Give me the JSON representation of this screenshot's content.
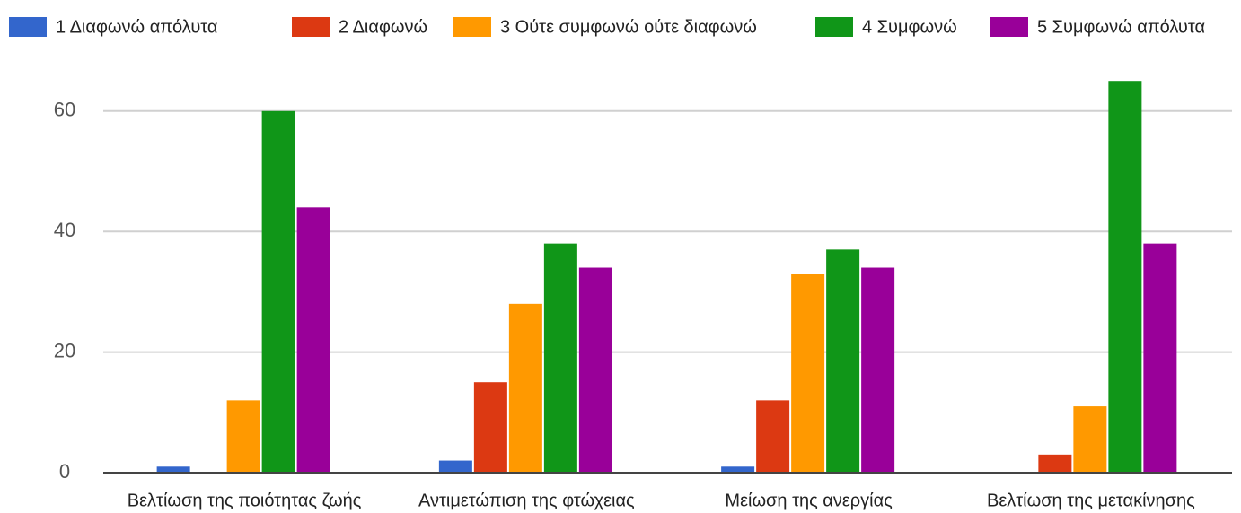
{
  "chart_data": {
    "type": "bar",
    "categories": [
      "Βελτίωση της ποιότητας ζωής",
      "Αντιμετώπιση της φτώχειας",
      "Μείωση της ανεργίας",
      "Βελτίωση της μετακίνησης"
    ],
    "series": [
      {
        "name": "1 Διαφωνώ απόλυτα",
        "color": "#3366cc",
        "values": [
          1,
          2,
          1,
          0
        ]
      },
      {
        "name": "2 Διαφωνώ",
        "color": "#dc3912",
        "values": [
          0,
          15,
          12,
          3
        ]
      },
      {
        "name": "3 Ούτε συμφωνώ ούτε διαφωνώ",
        "color": "#ff9900",
        "values": [
          12,
          28,
          33,
          11
        ]
      },
      {
        "name": "4 Συμφωνώ",
        "color": "#109618",
        "values": [
          60,
          38,
          37,
          65
        ]
      },
      {
        "name": "5 Συμφωνώ απόλυτα",
        "color": "#990099",
        "values": [
          44,
          34,
          34,
          38
        ]
      }
    ],
    "ylim": [
      0,
      66
    ],
    "yticks": [
      0,
      20,
      40,
      60
    ],
    "grid": true,
    "legend": "top"
  }
}
